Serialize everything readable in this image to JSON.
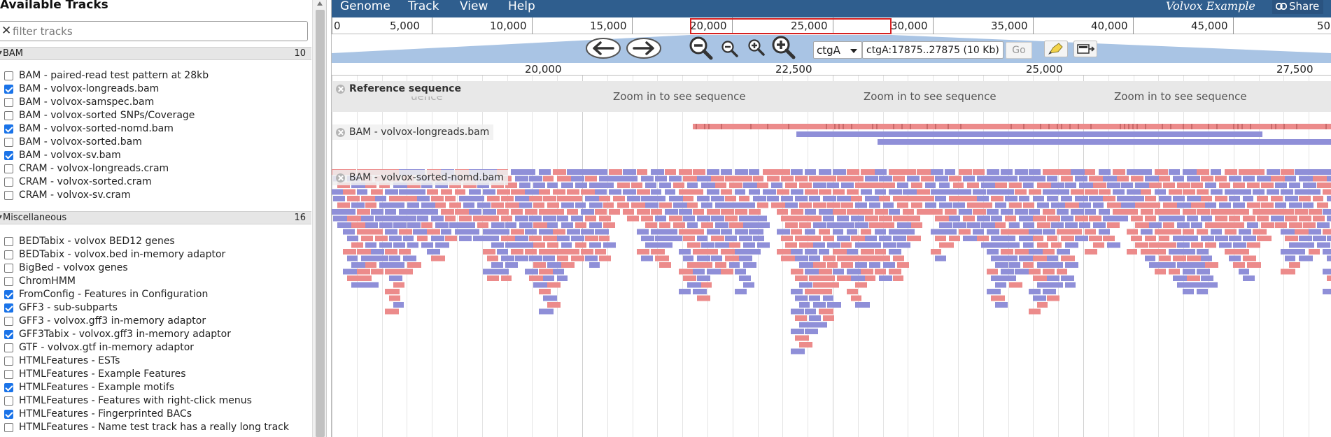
{
  "left": {
    "title": "Available Tracks",
    "filter_placeholder": "filter tracks",
    "categories": [
      {
        "name": "BAM",
        "count": "10",
        "tracks": [
          {
            "label": "BAM - paired-read test pattern at 28kb",
            "checked": false
          },
          {
            "label": "BAM - volvox-longreads.bam",
            "checked": true
          },
          {
            "label": "BAM - volvox-samspec.bam",
            "checked": false
          },
          {
            "label": "BAM - volvox-sorted SNPs/Coverage",
            "checked": false
          },
          {
            "label": "BAM - volvox-sorted-nomd.bam",
            "checked": true
          },
          {
            "label": "BAM - volvox-sorted.bam",
            "checked": false
          },
          {
            "label": "BAM - volvox-sv.bam",
            "checked": true
          },
          {
            "label": "CRAM - volvox-longreads.cram",
            "checked": false
          },
          {
            "label": "CRAM - volvox-sorted.cram",
            "checked": false
          },
          {
            "label": "CRAM - volvox-sv.cram",
            "checked": false
          }
        ]
      },
      {
        "name": "Miscellaneous",
        "count": "16",
        "tracks": [
          {
            "label": "BEDTabix - volvox BED12 genes",
            "checked": false
          },
          {
            "label": "BEDTabix - volvox.bed in-memory adaptor",
            "checked": false
          },
          {
            "label": "BigBed - volvox genes",
            "checked": false
          },
          {
            "label": "ChromHMM",
            "checked": false
          },
          {
            "label": "FromConfig - Features in Configuration",
            "checked": true
          },
          {
            "label": "GFF3 - sub-subparts",
            "checked": true
          },
          {
            "label": "GFF3 - volvox.gff3 in-memory adaptor",
            "checked": false
          },
          {
            "label": "GFF3Tabix - volvox.gff3 in-memory adaptor",
            "checked": true
          },
          {
            "label": "GTF - volvox.gtf in-memory adaptor",
            "checked": false
          },
          {
            "label": "HTMLFeatures - ESTs",
            "checked": false
          },
          {
            "label": "HTMLFeatures - Example Features",
            "checked": false
          },
          {
            "label": "HTMLFeatures - Example motifs",
            "checked": true
          },
          {
            "label": "HTMLFeatures - Features with right-click menus",
            "checked": false
          },
          {
            "label": "HTMLFeatures - Fingerprinted BACs",
            "checked": true
          },
          {
            "label": "HTMLFeatures - Name test track has a really long track",
            "checked": false
          }
        ]
      }
    ]
  },
  "menubar": {
    "items": [
      "Genome",
      "Track",
      "View",
      "Help"
    ],
    "app_name": "Volvox Example",
    "share_label": "Share"
  },
  "overview": {
    "labels": [
      "0",
      "5,000",
      "10,000",
      "15,000",
      "20,000",
      "25,000",
      "30,000",
      "35,000",
      "40,000",
      "45,000",
      "50"
    ]
  },
  "navbar": {
    "ref_seq": "ctgA",
    "location": "ctgA:17875..27875 (10 Kb)",
    "go_label": "Go"
  },
  "scale": {
    "labels": [
      "20,000",
      "22,500",
      "25,000",
      "27,500"
    ]
  },
  "tracks": {
    "reference": {
      "label": "Reference sequence",
      "zoom_message": "Zoom in to see sequence",
      "ghost_text": "uence"
    },
    "longreads": {
      "label": "BAM - volvox-longreads.bam"
    },
    "nomd": {
      "label": "BAM - volvox-sorted-nomd.bam"
    }
  },
  "colors": {
    "forward_read": "#ec8b8b",
    "reverse_read": "#8f8fd8",
    "menubar": "#2f5e8e"
  }
}
